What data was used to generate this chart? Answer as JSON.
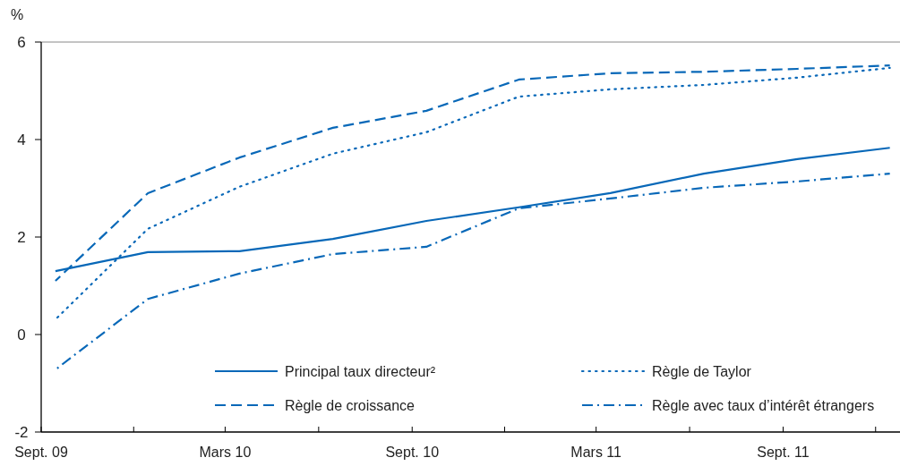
{
  "chart_data": {
    "type": "line",
    "ylabel": "%",
    "x": [
      "2009-09-15",
      "2009-12-15",
      "2010-03-15",
      "2010-06-15",
      "2010-09-15",
      "2010-12-15",
      "2011-03-15",
      "2011-06-15",
      "2011-09-15",
      "2011-12-15"
    ],
    "xlim": [
      "2009-09-01",
      "2011-12-25"
    ],
    "xticks": [
      {
        "value": "2009-09-01",
        "label": "Sept. 09"
      },
      {
        "value": "2009-12-01",
        "label": null
      },
      {
        "value": "2010-03-01",
        "label": "Mars 10"
      },
      {
        "value": "2010-06-01",
        "label": null
      },
      {
        "value": "2010-09-01",
        "label": "Sept. 10"
      },
      {
        "value": "2010-12-01",
        "label": null
      },
      {
        "value": "2011-03-01",
        "label": "Mars 11"
      },
      {
        "value": "2011-06-01",
        "label": null
      },
      {
        "value": "2011-09-01",
        "label": "Sept. 11"
      },
      {
        "value": "2011-12-01",
        "label": null
      }
    ],
    "ylim": [
      -2,
      6
    ],
    "yticks": [
      -2,
      0,
      2,
      4,
      6
    ],
    "grid": false,
    "legend": "bottom",
    "marker": "none",
    "series": [
      {
        "name": "Principal taux directeur²",
        "color": "#0868b8",
        "line_style": "solid",
        "values": [
          1.3,
          1.69,
          1.71,
          1.96,
          2.33,
          2.61,
          2.9,
          3.3,
          3.6,
          3.83
        ]
      },
      {
        "name": "Règle de Taylor",
        "color": "#0868b8",
        "line_style": "dotted",
        "values": [
          0.31,
          2.17,
          3.03,
          3.71,
          4.15,
          4.88,
          5.03,
          5.12,
          5.27,
          5.47
        ]
      },
      {
        "name": "Règle de croissance",
        "color": "#0868b8",
        "line_style": "dashed",
        "values": [
          1.1,
          2.9,
          3.63,
          4.24,
          4.59,
          5.23,
          5.36,
          5.39,
          5.45,
          5.52
        ]
      },
      {
        "name": "Règle avec taux d’intérêt étrangers",
        "color": "#0868b8",
        "line_style": "dashdot",
        "values": [
          -0.72,
          0.73,
          1.25,
          1.65,
          1.8,
          2.59,
          2.79,
          3.01,
          3.14,
          3.3
        ]
      }
    ]
  }
}
